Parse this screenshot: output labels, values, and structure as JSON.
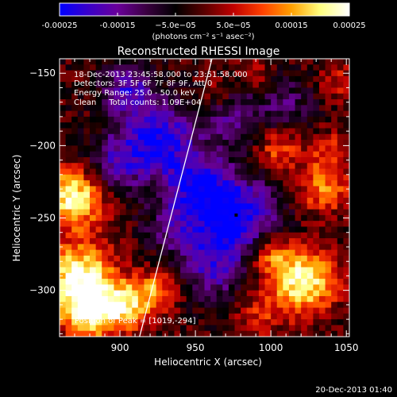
{
  "chart_data": {
    "type": "heatmap",
    "title": "Reconstructed RHESSI Image",
    "xlabel": "Heliocentric X (arcsec)",
    "ylabel": "Heliocentric Y (arcsec)",
    "xlim": [
      860,
      1052
    ],
    "ylim": [
      -332,
      -140
    ],
    "x_ticks": [
      900,
      950,
      1000,
      1050
    ],
    "y_ticks": [
      -300,
      -250,
      -200,
      -150
    ],
    "colorbar": {
      "range": [
        -0.00025,
        0.00025
      ],
      "ticks": [
        "-0.00025",
        "-0.00015",
        "−5.0e−05",
        "5.0e−05",
        "0.00015",
        "0.00025"
      ],
      "unit_label": "(photons cm⁻² s⁻¹ asec⁻²)",
      "colors": [
        "#0000ff",
        "#3a00c8",
        "#6a009a",
        "#3a0040",
        "#000000",
        "#5a0000",
        "#c00000",
        "#ff4000",
        "#ffa000",
        "#ffff80",
        "#ffffff"
      ]
    },
    "annotations": [
      "18-Dec-2013 23:45:58.000 to 23:51:58.000",
      "Detectors: 3F 5F 6F 7F 8F 9F, Att 0",
      "Energy Range: 25.0 - 50.0 keV",
      "Clean     Total counts: 1.09E+04"
    ],
    "peak_label": "Position of Peak = [1019,-294]",
    "peak_marker": [
      977,
      -248
    ],
    "limb_line": [
      [
        913,
        -332
      ],
      [
        961,
        -140
      ]
    ],
    "sources": [
      {
        "x": 870,
        "y": -235,
        "amp": 0.00025,
        "r": 15
      },
      {
        "x": 873,
        "y": -290,
        "amp": 0.00024,
        "r": 16
      },
      {
        "x": 880,
        "y": -315,
        "amp": 0.00022,
        "r": 14
      },
      {
        "x": 905,
        "y": -310,
        "amp": 0.00018,
        "r": 12
      },
      {
        "x": 925,
        "y": -300,
        "amp": 0.00014,
        "r": 10
      },
      {
        "x": 1020,
        "y": -294,
        "amp": 0.00025,
        "r": 16
      },
      {
        "x": 1000,
        "y": -275,
        "amp": 0.00012,
        "r": 10
      },
      {
        "x": 990,
        "y": -320,
        "amp": 8e-05,
        "r": 10
      },
      {
        "x": 1035,
        "y": -230,
        "amp": 0.00015,
        "r": 12
      },
      {
        "x": 1005,
        "y": -205,
        "amp": 0.00012,
        "r": 11
      },
      {
        "x": 1040,
        "y": -205,
        "amp": 0.0001,
        "r": 10
      },
      {
        "x": 1045,
        "y": -155,
        "amp": 8e-05,
        "r": 9
      },
      {
        "x": 965,
        "y": -165,
        "amp": 7e-05,
        "r": 8
      },
      {
        "x": 990,
        "y": -150,
        "amp": 6e-05,
        "r": 8
      },
      {
        "x": 975,
        "y": -248,
        "amp": -0.00025,
        "r": 20
      },
      {
        "x": 925,
        "y": -195,
        "amp": -0.00022,
        "r": 18
      },
      {
        "x": 905,
        "y": -160,
        "amp": -0.00015,
        "r": 12
      },
      {
        "x": 895,
        "y": -215,
        "amp": -0.00014,
        "r": 14
      },
      {
        "x": 950,
        "y": -225,
        "amp": -0.00016,
        "r": 14
      },
      {
        "x": 975,
        "y": -180,
        "amp": -0.00012,
        "r": 13
      },
      {
        "x": 960,
        "y": -285,
        "amp": -0.00014,
        "r": 15
      },
      {
        "x": 935,
        "y": -255,
        "amp": -0.0001,
        "r": 14
      },
      {
        "x": 1010,
        "y": -170,
        "amp": -0.0001,
        "r": 12
      }
    ]
  },
  "footer": {
    "date": "20-Dec-2013 01:40"
  }
}
